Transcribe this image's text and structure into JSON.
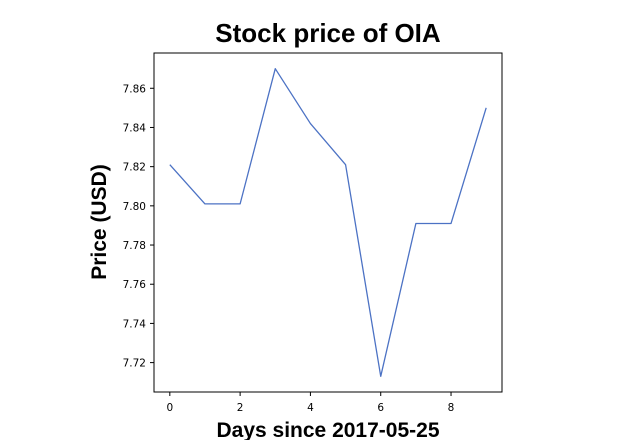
{
  "chart_data": {
    "type": "line",
    "title": "Stock price of OIA",
    "xlabel": "Days since 2017-05-25",
    "ylabel": "Price (USD)",
    "x": [
      0,
      1,
      2,
      3,
      4,
      5,
      6,
      7,
      8,
      9
    ],
    "series": [
      {
        "name": "",
        "color": "#4c72c4",
        "values": [
          7.821,
          7.801,
          7.801,
          7.87,
          7.842,
          7.821,
          7.713,
          7.791,
          7.791,
          7.85
        ]
      }
    ],
    "xlim": [
      -0.45,
      9.45
    ],
    "ylim": [
      7.705,
      7.878
    ],
    "xticks": [
      0,
      2,
      4,
      6,
      8
    ],
    "yticks": [
      7.72,
      7.74,
      7.76,
      7.78,
      7.8,
      7.82,
      7.84,
      7.86
    ],
    "xtick_labels": [
      "0",
      "2",
      "4",
      "6",
      "8"
    ],
    "ytick_labels": [
      "7.72",
      "7.74",
      "7.76",
      "7.78",
      "7.80",
      "7.82",
      "7.84",
      "7.86"
    ],
    "grid": false,
    "legend": "none"
  }
}
